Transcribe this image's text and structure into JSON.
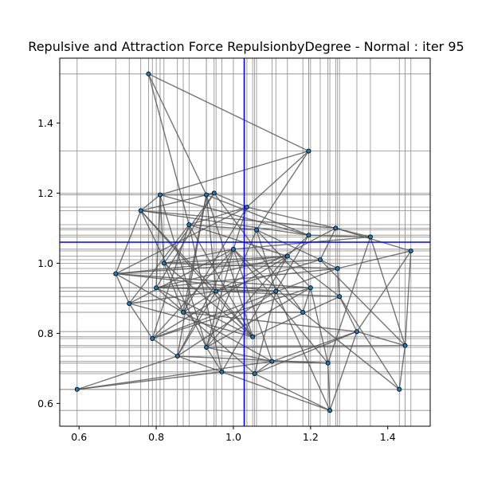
{
  "chart_data": {
    "type": "scatter",
    "title": "Repulsive and Attraction Force RepulsionbyDegree - Normal : iter 95",
    "xlabel": "",
    "ylabel": "",
    "xlim": [
      0.55,
      1.51
    ],
    "ylim": [
      0.535,
      1.585
    ],
    "xticks": [
      0.6,
      0.8,
      1.0,
      1.2,
      1.4
    ],
    "yticks": [
      0.6,
      0.8,
      1.0,
      1.2,
      1.4
    ],
    "xtick_labels": [
      "0.6",
      "0.8",
      "1.0",
      "1.2",
      "1.4"
    ],
    "ytick_labels": [
      "0.6",
      "0.8",
      "1.0",
      "1.2",
      "1.4"
    ],
    "center_lines": {
      "x": 1.028,
      "y": 1.06,
      "color": "#0000ff"
    },
    "edge_color": "#555555",
    "node_color": "#1f77b4",
    "nodes": [
      {
        "x": 0.78,
        "y": 1.54
      },
      {
        "x": 1.195,
        "y": 1.32
      },
      {
        "x": 0.595,
        "y": 0.64
      },
      {
        "x": 1.25,
        "y": 0.58
      },
      {
        "x": 1.43,
        "y": 0.64
      },
      {
        "x": 1.445,
        "y": 0.765
      },
      {
        "x": 1.46,
        "y": 1.035
      },
      {
        "x": 1.355,
        "y": 1.075
      },
      {
        "x": 1.265,
        "y": 1.1
      },
      {
        "x": 1.195,
        "y": 1.08
      },
      {
        "x": 1.32,
        "y": 0.805
      },
      {
        "x": 1.275,
        "y": 0.905
      },
      {
        "x": 1.27,
        "y": 0.985
      },
      {
        "x": 1.225,
        "y": 1.01
      },
      {
        "x": 1.245,
        "y": 0.715
      },
      {
        "x": 1.1,
        "y": 0.72
      },
      {
        "x": 1.055,
        "y": 0.685
      },
      {
        "x": 0.97,
        "y": 0.69
      },
      {
        "x": 0.855,
        "y": 0.735
      },
      {
        "x": 0.79,
        "y": 0.785
      },
      {
        "x": 0.73,
        "y": 0.885
      },
      {
        "x": 0.695,
        "y": 0.97
      },
      {
        "x": 0.76,
        "y": 1.15
      },
      {
        "x": 0.81,
        "y": 1.195
      },
      {
        "x": 0.93,
        "y": 1.195
      },
      {
        "x": 0.95,
        "y": 1.2
      },
      {
        "x": 1.035,
        "y": 1.16
      },
      {
        "x": 0.885,
        "y": 1.11
      },
      {
        "x": 1.06,
        "y": 1.095
      },
      {
        "x": 1.11,
        "y": 0.92
      },
      {
        "x": 0.955,
        "y": 0.92
      },
      {
        "x": 0.87,
        "y": 0.86
      },
      {
        "x": 1.18,
        "y": 0.86
      },
      {
        "x": 1.0,
        "y": 1.04
      },
      {
        "x": 0.82,
        "y": 1.0
      },
      {
        "x": 1.14,
        "y": 1.02
      },
      {
        "x": 0.93,
        "y": 0.76
      },
      {
        "x": 1.2,
        "y": 0.93
      },
      {
        "x": 0.8,
        "y": 0.93
      },
      {
        "x": 1.05,
        "y": 0.79
      }
    ],
    "edges": [
      [
        0,
        1
      ],
      [
        0,
        24
      ],
      [
        0,
        27
      ],
      [
        1,
        23
      ],
      [
        1,
        26
      ],
      [
        1,
        28
      ],
      [
        2,
        17
      ],
      [
        2,
        15
      ],
      [
        2,
        18
      ],
      [
        3,
        16
      ],
      [
        3,
        14
      ],
      [
        3,
        10
      ],
      [
        3,
        17
      ],
      [
        3,
        29
      ],
      [
        4,
        5
      ],
      [
        4,
        11
      ],
      [
        4,
        32
      ],
      [
        5,
        6
      ],
      [
        5,
        7
      ],
      [
        5,
        13
      ],
      [
        5,
        10
      ],
      [
        5,
        36
      ],
      [
        6,
        12
      ],
      [
        6,
        8
      ],
      [
        6,
        10
      ],
      [
        7,
        8
      ],
      [
        7,
        14
      ],
      [
        7,
        9
      ],
      [
        7,
        33
      ],
      [
        8,
        26
      ],
      [
        8,
        13
      ],
      [
        8,
        30
      ],
      [
        8,
        22
      ],
      [
        9,
        24
      ],
      [
        9,
        22
      ],
      [
        9,
        29
      ],
      [
        9,
        23
      ],
      [
        10,
        11
      ],
      [
        10,
        16
      ],
      [
        10,
        31
      ],
      [
        10,
        15
      ],
      [
        11,
        12
      ],
      [
        11,
        35
      ],
      [
        11,
        39
      ],
      [
        12,
        13
      ],
      [
        12,
        19
      ],
      [
        12,
        34
      ],
      [
        13,
        21
      ],
      [
        13,
        30
      ],
      [
        13,
        28
      ],
      [
        14,
        15
      ],
      [
        14,
        18
      ],
      [
        14,
        37
      ],
      [
        15,
        16
      ],
      [
        15,
        31
      ],
      [
        15,
        33
      ],
      [
        16,
        17
      ],
      [
        16,
        38
      ],
      [
        17,
        18
      ],
      [
        17,
        35
      ],
      [
        17,
        36
      ],
      [
        18,
        19
      ],
      [
        18,
        30
      ],
      [
        18,
        29
      ],
      [
        19,
        20
      ],
      [
        19,
        33
      ],
      [
        19,
        37
      ],
      [
        20,
        21
      ],
      [
        20,
        27
      ],
      [
        20,
        39
      ],
      [
        21,
        22
      ],
      [
        21,
        35
      ],
      [
        21,
        29
      ],
      [
        21,
        31
      ],
      [
        22,
        23
      ],
      [
        22,
        25
      ],
      [
        22,
        36
      ],
      [
        23,
        24
      ],
      [
        23,
        34
      ],
      [
        23,
        38
      ],
      [
        24,
        25
      ],
      [
        24,
        30
      ],
      [
        25,
        26
      ],
      [
        25,
        32
      ],
      [
        26,
        27
      ],
      [
        26,
        31
      ],
      [
        27,
        28
      ],
      [
        27,
        39
      ],
      [
        28,
        29
      ],
      [
        28,
        36
      ],
      [
        29,
        30
      ],
      [
        29,
        38
      ],
      [
        30,
        31
      ],
      [
        30,
        39
      ],
      [
        31,
        32
      ],
      [
        31,
        34
      ],
      [
        32,
        33
      ],
      [
        32,
        37
      ],
      [
        33,
        34
      ],
      [
        33,
        36
      ],
      [
        34,
        35
      ],
      [
        34,
        39
      ],
      [
        35,
        36
      ],
      [
        35,
        38
      ],
      [
        36,
        37
      ],
      [
        37,
        38
      ],
      [
        38,
        39
      ],
      [
        39,
        22
      ],
      [
        20,
        30
      ],
      [
        19,
        27
      ],
      [
        18,
        33
      ],
      [
        21,
        26
      ],
      [
        23,
        36
      ],
      [
        24,
        31
      ],
      [
        25,
        38
      ],
      [
        26,
        33
      ],
      [
        27,
        35
      ],
      [
        28,
        37
      ],
      [
        22,
        30
      ],
      [
        19,
        35
      ],
      [
        24,
        39
      ],
      [
        25,
        34
      ],
      [
        20,
        33
      ],
      [
        21,
        37
      ],
      [
        18,
        24
      ],
      [
        17,
        27
      ],
      [
        16,
        29
      ],
      [
        15,
        36
      ],
      [
        14,
        33
      ],
      [
        12,
        38
      ],
      [
        11,
        30
      ],
      [
        9,
        35
      ]
    ]
  }
}
